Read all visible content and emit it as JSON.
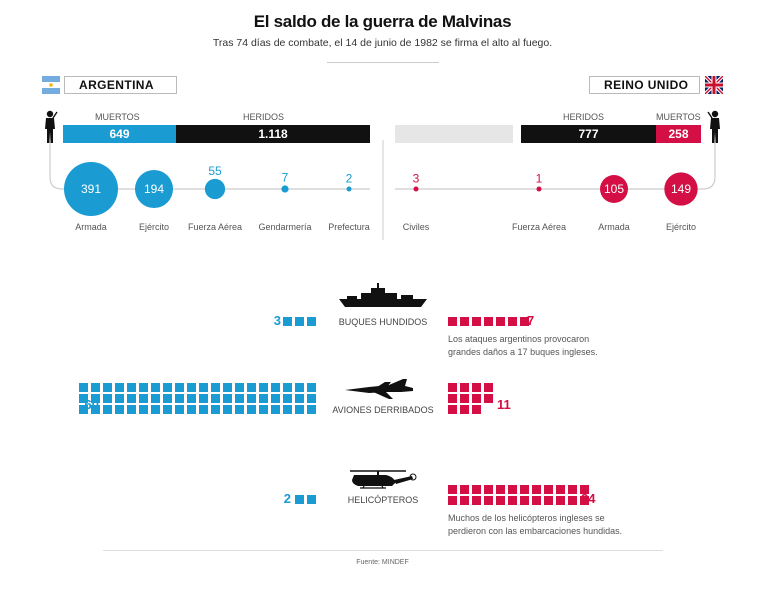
{
  "title": "El saldo de la guerra de Malvinas",
  "subtitle": "Tras 74 días de combate, el 14 de junio de 1982 se firma el alto al fuego.",
  "source": "Fuente: MINDEF",
  "colors": {
    "argentina": "#1a9bd2",
    "uk": "#d30f45",
    "dark": "#111111",
    "light": "#e6e6e6"
  },
  "argentina": {
    "name": "ARGENTINA",
    "flag_icon": "argentina-flag-icon",
    "muertos_label": "MUERTOS",
    "heridos_label": "HERIDOS",
    "muertos": "649",
    "heridos": "1.118",
    "branches": [
      {
        "name": "Armada",
        "value": 391,
        "label": "391"
      },
      {
        "name": "Ejército",
        "value": 194,
        "label": "194"
      },
      {
        "name": "Fuerza Aérea",
        "value": 55,
        "label": "55"
      },
      {
        "name": "Gendarmería",
        "value": 7,
        "label": "7"
      },
      {
        "name": "Prefectura",
        "value": 2,
        "label": "2"
      }
    ]
  },
  "uk": {
    "name": "REINO UNIDO",
    "flag_icon": "uk-flag-icon",
    "muertos_label": "MUERTOS",
    "heridos_label": "HERIDOS",
    "muertos": "258",
    "heridos": "777",
    "branches": [
      {
        "name": "Civiles",
        "value": 3,
        "label": "3"
      },
      {
        "name": "Fuerza Aérea",
        "value": 1,
        "label": "1"
      },
      {
        "name": "Armada",
        "value": 105,
        "label": "105"
      },
      {
        "name": "Ejército",
        "value": 149,
        "label": "149"
      }
    ]
  },
  "losses": [
    {
      "label": "BUQUES HUNDIDOS",
      "icon": "warship-icon",
      "argentina": 3,
      "argentina_label": "3",
      "uk": 7,
      "uk_label": "7",
      "note": [
        "Los ataques argentinos provocaron",
        "grandes daños a 17 buques ingleses."
      ]
    },
    {
      "label": "AVIONES DERRIBADOS",
      "icon": "fighter-jet-icon",
      "argentina": 60,
      "argentina_label": "60",
      "uk": 11,
      "uk_label": "11",
      "note": []
    },
    {
      "label": "HELICÓPTEROS",
      "icon": "helicopter-icon",
      "argentina": 2,
      "argentina_label": "2",
      "uk": 24,
      "uk_label": "24",
      "note": [
        "Muchos de los helicópteros ingleses se",
        "perdieron con  las embarcaciones hundidas."
      ]
    }
  ],
  "chart_data": [
    {
      "type": "bar",
      "categories": [
        "MUERTOS",
        "HERIDOS"
      ],
      "series": [
        {
          "name": "ARGENTINA",
          "values": [
            649,
            1118
          ]
        },
        {
          "name": "REINO UNIDO",
          "values": [
            258,
            777
          ]
        }
      ]
    },
    {
      "type": "scatter",
      "categories": [
        "Armada",
        "Ejército",
        "Fuerza Aérea",
        "Gendarmería",
        "Prefectura"
      ],
      "series": [
        {
          "name": "ARGENTINA",
          "values": [
            391,
            194,
            55,
            7,
            2
          ]
        }
      ]
    },
    {
      "type": "scatter",
      "categories": [
        "Civiles",
        "Fuerza Aérea",
        "Armada",
        "Ejército"
      ],
      "series": [
        {
          "name": "REINO UNIDO",
          "values": [
            3,
            1,
            105,
            149
          ]
        }
      ]
    },
    {
      "type": "bar",
      "categories": [
        "BUQUES HUNDIDOS",
        "AVIONES DERRIBADOS",
        "HELICÓPTEROS"
      ],
      "series": [
        {
          "name": "ARGENTINA",
          "values": [
            3,
            60,
            2
          ]
        },
        {
          "name": "REINO UNIDO",
          "values": [
            7,
            11,
            24
          ]
        }
      ]
    }
  ]
}
